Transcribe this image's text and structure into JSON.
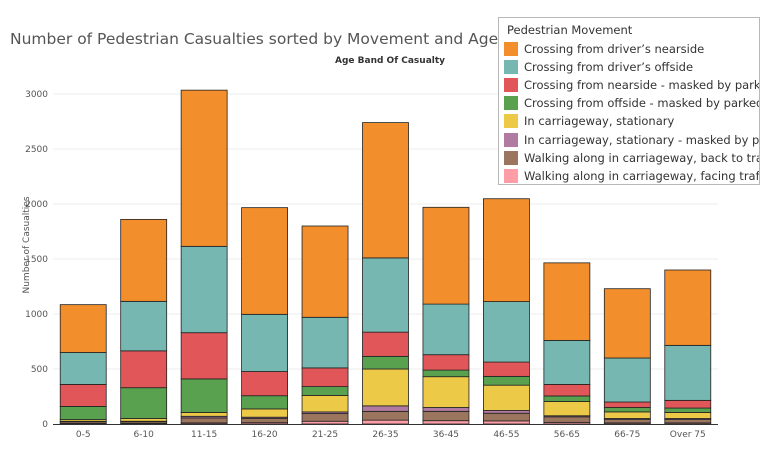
{
  "chart_data": {
    "type": "bar",
    "stacked": true,
    "title": "Number of  Pedestrian Casualties sorted by Movement and Age Group",
    "subtitle": "Age Band Of Casualty",
    "xlabel": "",
    "ylabel": "Number of Casualties",
    "ylim": [
      0,
      3250
    ],
    "yticks": [
      0,
      500,
      1000,
      1500,
      2000,
      2500,
      3000
    ],
    "grid": true,
    "legend_position": "top-right",
    "legend_title": "Pedestrian Movement",
    "categories": [
      "0-5",
      "6-10",
      "11-15",
      "16-20",
      "21-25",
      "26-35",
      "36-45",
      "46-55",
      "56-65",
      "66-75",
      "Over 75"
    ],
    "series": [
      {
        "name": "Walking along in carriageway, facing traffic",
        "color": "#ff9da7",
        "values": [
          5,
          5,
          10,
          12,
          25,
          35,
          30,
          28,
          15,
          10,
          10
        ]
      },
      {
        "name": "Walking along in carriageway, back to traffic",
        "color": "#9c755f",
        "values": [
          15,
          15,
          45,
          40,
          70,
          80,
          85,
          70,
          50,
          30,
          30
        ]
      },
      {
        "name": "In carriageway, stationary - masked by parked vehicle",
        "color": "#b07aa1",
        "values": [
          5,
          5,
          15,
          10,
          15,
          50,
          35,
          25,
          10,
          10,
          10
        ]
      },
      {
        "name": "In carriageway, stationary",
        "color": "#edc948",
        "values": [
          15,
          25,
          35,
          75,
          150,
          335,
          280,
          230,
          130,
          60,
          55
        ]
      },
      {
        "name": "Crossing from offside - masked by parked or stationary vehicle",
        "color": "#59a14f",
        "values": [
          120,
          280,
          305,
          120,
          80,
          115,
          60,
          80,
          50,
          40,
          40
        ]
      },
      {
        "name": "Crossing from nearside - masked by parked or stationary vehicle",
        "color": "#e15759",
        "values": [
          200,
          335,
          420,
          220,
          170,
          220,
          140,
          130,
          105,
          50,
          70
        ]
      },
      {
        "name": "Crossing from driver’s offside",
        "color": "#76b7b2",
        "values": [
          290,
          450,
          785,
          520,
          460,
          675,
          460,
          550,
          400,
          400,
          500
        ]
      },
      {
        "name": "Crossing from driver’s nearside",
        "color": "#f28e2b",
        "values": [
          435,
          745,
          1420,
          970,
          830,
          1230,
          880,
          935,
          705,
          630,
          685
        ]
      }
    ]
  },
  "legend": {
    "title": "Pedestrian Movement",
    "items": [
      {
        "label": "Crossing from driver’s nearside",
        "color": "#f28e2b"
      },
      {
        "label": "Crossing from driver’s offside",
        "color": "#76b7b2"
      },
      {
        "label": "Crossing from nearside - masked by parked or..",
        "color": "#e15759"
      },
      {
        "label": "Crossing from offside - masked by parked of s..",
        "color": "#59a14f"
      },
      {
        "label": "In carriageway, stationary",
        "color": "#edc948"
      },
      {
        "label": "In carriageway, stationary - masked by parke..",
        "color": "#b07aa1"
      },
      {
        "label": "Walking along in carriageway, back to traffic",
        "color": "#9c755f"
      },
      {
        "label": "Walking along in carriageway, facing traffic",
        "color": "#ff9da7"
      }
    ]
  }
}
